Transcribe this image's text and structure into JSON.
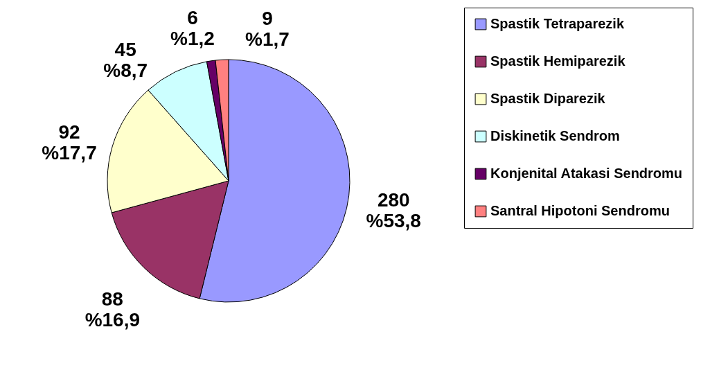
{
  "chart_data": {
    "type": "pie",
    "categories": [
      "Spastik Tetraparezik",
      "Spastik Hemiparezik",
      "Spastik Diparezik",
      "Diskinetik Sendrom",
      "Konjenital Atakasi Sendromu",
      "Santral Hipotoni Sendromu"
    ],
    "values": [
      280,
      88,
      92,
      45,
      6,
      9
    ],
    "colors": [
      "#9999ff",
      "#993366",
      "#ffffcc",
      "#ccffff",
      "#660066",
      "#ff8080"
    ],
    "value_labels": [
      "280 %53,8",
      "88 %16,9",
      "92 %17,7",
      "45 %8,7",
      "6 %1,2",
      "9 %1,7"
    ],
    "legend": "right"
  }
}
